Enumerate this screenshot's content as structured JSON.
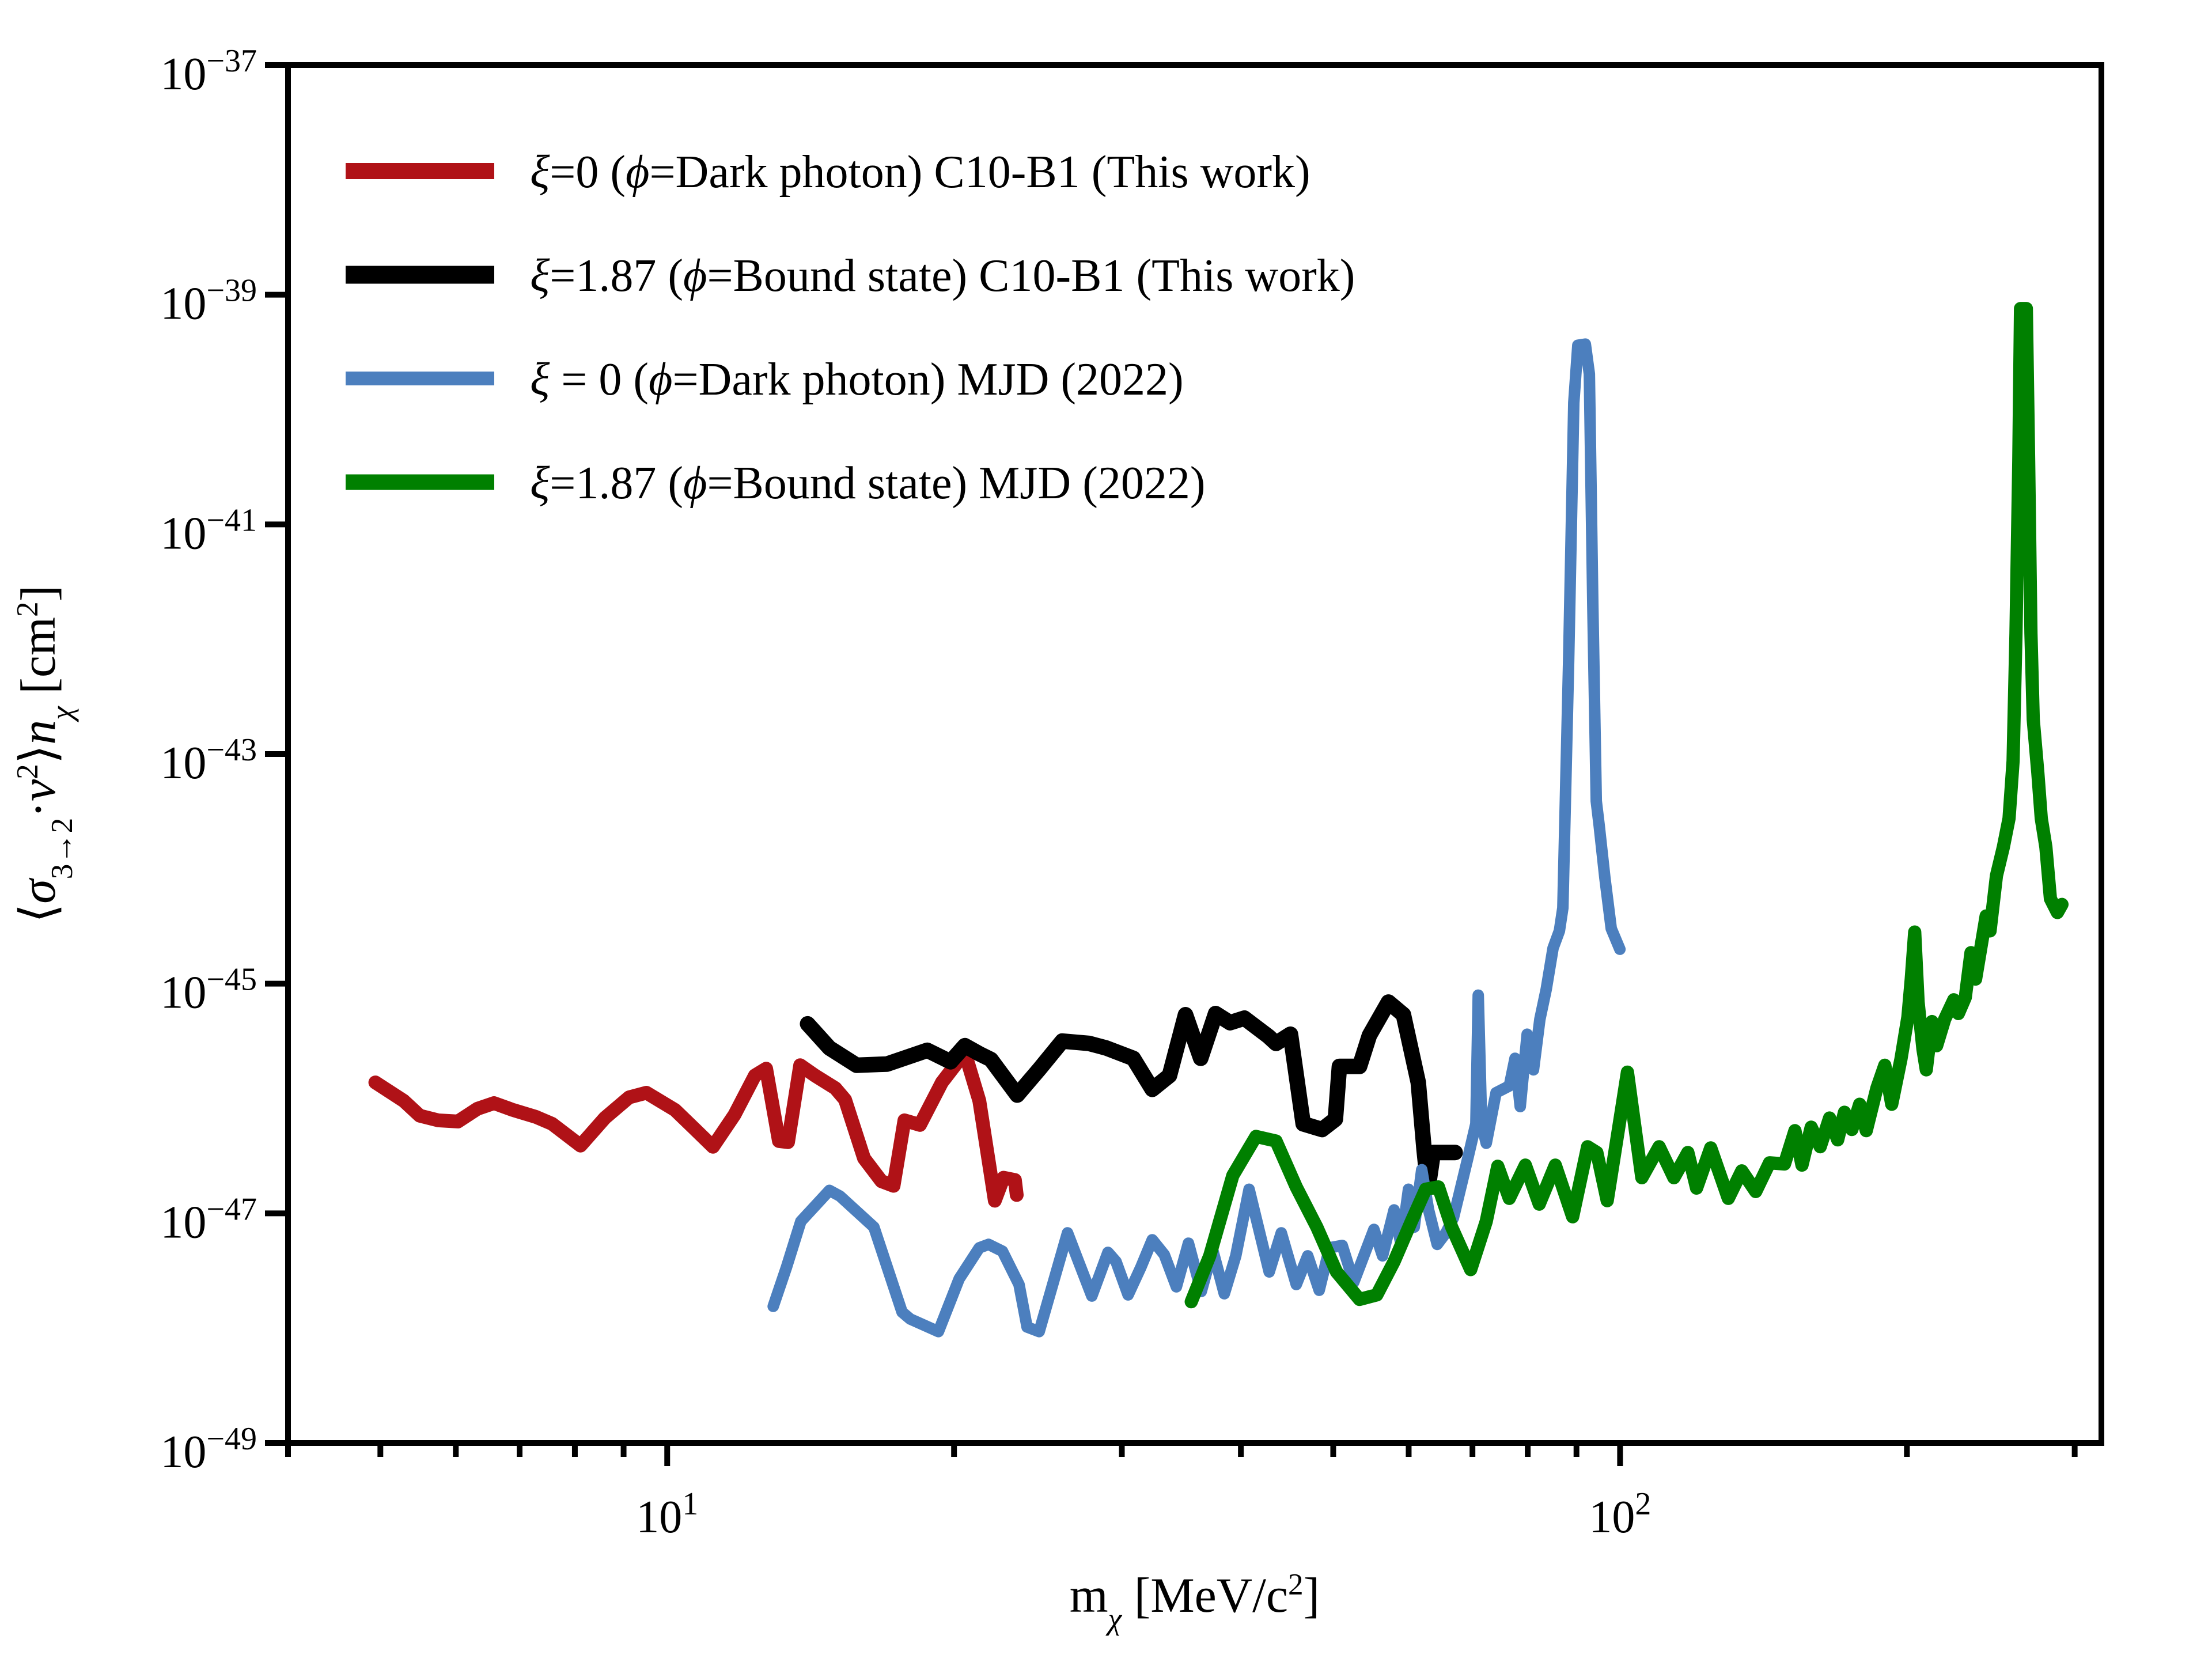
{
  "figure": {
    "background": "#ffffff",
    "frame_color": "#000000"
  },
  "labels": {
    "xlabel_parts": [
      {
        "t": "m",
        "k": "n"
      },
      {
        "t": "χ",
        "k": "isub"
      },
      {
        "t": " [MeV/c",
        "k": "n"
      },
      {
        "t": "2",
        "k": "sup"
      },
      {
        "t": "]",
        "k": "n"
      }
    ],
    "ylabel_parts": [
      {
        "t": "⟨",
        "k": "n"
      },
      {
        "t": "σ",
        "k": "i"
      },
      {
        "t": "3→2",
        "k": "sub"
      },
      {
        "t": "·",
        "k": "n"
      },
      {
        "t": "v",
        "k": "i"
      },
      {
        "t": "2",
        "k": "sup"
      },
      {
        "t": "⟩",
        "k": "n"
      },
      {
        "t": "n",
        "k": "i"
      },
      {
        "t": "χ",
        "k": "isub"
      },
      {
        "t": " [cm",
        "k": "n"
      },
      {
        "t": "2",
        "k": "sup"
      },
      {
        "t": "]",
        "k": "n"
      }
    ]
  },
  "axes": {
    "x_major": [
      {
        "m": 10,
        "base": "10",
        "exp": "1"
      },
      {
        "m": 100,
        "base": "10",
        "exp": "2"
      }
    ],
    "x_minor": [
      4,
      5,
      6,
      7,
      8,
      9,
      20,
      30,
      40,
      50,
      60,
      70,
      80,
      90,
      200,
      300
    ],
    "y_major": [
      {
        "e": -37,
        "base": "10",
        "exp": "−37"
      },
      {
        "e": -39,
        "base": "10",
        "exp": "−39"
      },
      {
        "e": -41,
        "base": "10",
        "exp": "−41"
      },
      {
        "e": -43,
        "base": "10",
        "exp": "−43"
      },
      {
        "e": -45,
        "base": "10",
        "exp": "−45"
      },
      {
        "e": -47,
        "base": "10",
        "exp": "−47"
      },
      {
        "e": -49,
        "base": "10",
        "exp": "−49"
      }
    ]
  },
  "legend": {
    "entries": [
      {
        "id": "xi0-c10b1",
        "color": "#B01217",
        "parts": [
          {
            "t": "ξ",
            "k": "i"
          },
          {
            "t": "=0 (",
            "k": "n"
          },
          {
            "t": "ϕ",
            "k": "i"
          },
          {
            "t": "=Dark photon) C10-B1 (This work)",
            "k": "n"
          }
        ]
      },
      {
        "id": "xi187-c10b1",
        "color": "#000000",
        "parts": [
          {
            "t": "ξ",
            "k": "i"
          },
          {
            "t": "=1.87 (",
            "k": "n"
          },
          {
            "t": "ϕ",
            "k": "i"
          },
          {
            "t": "=Bound state) C10-B1 (This work)",
            "k": "n"
          }
        ]
      },
      {
        "id": "xi0-mjd",
        "color": "#4C7FBE",
        "parts": [
          {
            "t": "ξ",
            "k": "i"
          },
          {
            "t": " = 0 (",
            "k": "n"
          },
          {
            "t": "ϕ",
            "k": "i"
          },
          {
            "t": "=Dark photon) MJD (2022)",
            "k": "n"
          }
        ]
      },
      {
        "id": "xi187-mjd",
        "color": "#008000",
        "parts": [
          {
            "t": "ξ",
            "k": "i"
          },
          {
            "t": "=1.87 (",
            "k": "n"
          },
          {
            "t": "ϕ",
            "k": "i"
          },
          {
            "t": "=Bound state) MJD (2022)",
            "k": "n"
          }
        ]
      }
    ]
  },
  "chart_data": {
    "type": "line",
    "title": "",
    "xlabel": "m_chi [MeV/c^2]",
    "ylabel": "<sigma_{3->2} v^2> n_chi [cm^2]",
    "xscale": "log",
    "yscale": "log",
    "xlim": [
      4,
      320
    ],
    "ylim_log10": [
      -49,
      -37
    ],
    "grid": false,
    "legend_position": "upper left",
    "note": "points are [mass_MeV, log10_cross_section_cm2]",
    "series": [
      {
        "id": "xi0-c10b1",
        "name": "ξ=0 (ϕ=Dark photon) C10-B1 (This work)",
        "color": "#B01217",
        "lw": 24,
        "points": [
          [
            4.94,
            -45.86
          ],
          [
            5.29,
            -46.02
          ],
          [
            5.5,
            -46.15
          ],
          [
            5.75,
            -46.19
          ],
          [
            6.03,
            -46.2
          ],
          [
            6.32,
            -46.09
          ],
          [
            6.58,
            -46.04
          ],
          [
            6.89,
            -46.1
          ],
          [
            7.28,
            -46.16
          ],
          [
            7.57,
            -46.22
          ],
          [
            8.11,
            -46.41
          ],
          [
            8.6,
            -46.17
          ],
          [
            9.12,
            -45.99
          ],
          [
            9.51,
            -45.95
          ],
          [
            10.19,
            -46.1
          ],
          [
            10.67,
            -46.26
          ],
          [
            11.17,
            -46.42
          ],
          [
            11.77,
            -46.14
          ],
          [
            12.36,
            -45.8
          ],
          [
            12.7,
            -45.74
          ],
          [
            13.1,
            -46.37
          ],
          [
            13.39,
            -46.38
          ],
          [
            13.79,
            -45.71
          ],
          [
            14.29,
            -45.8
          ],
          [
            15.01,
            -45.91
          ],
          [
            15.37,
            -46.01
          ],
          [
            16.09,
            -46.52
          ],
          [
            16.78,
            -46.72
          ],
          [
            17.28,
            -46.76
          ],
          [
            17.74,
            -46.19
          ],
          [
            18.42,
            -46.23
          ],
          [
            19.42,
            -45.86
          ],
          [
            20.53,
            -45.6
          ],
          [
            21.26,
            -46.02
          ],
          [
            22.07,
            -46.89
          ],
          [
            22.54,
            -46.69
          ],
          [
            23.17,
            -46.71
          ],
          [
            23.27,
            -46.84
          ]
        ]
      },
      {
        "id": "xi187-c10b1",
        "name": "ξ=1.87 (ϕ=Bound state) C10-B1 (This work)",
        "color": "#000000",
        "lw": 27,
        "points": [
          [
            14.04,
            -45.35
          ],
          [
            14.8,
            -45.56
          ],
          [
            15.8,
            -45.71
          ],
          [
            17.01,
            -45.7
          ],
          [
            18.75,
            -45.58
          ],
          [
            19.83,
            -45.68
          ],
          [
            20.53,
            -45.54
          ],
          [
            21.26,
            -45.61
          ],
          [
            21.86,
            -45.66
          ],
          [
            23.3,
            -45.97
          ],
          [
            24.6,
            -45.74
          ],
          [
            25.98,
            -45.5
          ],
          [
            27.71,
            -45.52
          ],
          [
            28.89,
            -45.56
          ],
          [
            30.84,
            -45.65
          ],
          [
            32.29,
            -45.92
          ],
          [
            33.66,
            -45.8
          ],
          [
            34.99,
            -45.27
          ],
          [
            36.3,
            -45.65
          ],
          [
            37.63,
            -45.26
          ],
          [
            38.97,
            -45.34
          ],
          [
            40.34,
            -45.3
          ],
          [
            42.77,
            -45.46
          ],
          [
            43.55,
            -45.52
          ],
          [
            45.09,
            -45.44
          ],
          [
            46.5,
            -46.22
          ],
          [
            48.67,
            -46.27
          ],
          [
            50.26,
            -46.18
          ],
          [
            50.75,
            -45.72
          ],
          [
            53.29,
            -45.72
          ],
          [
            54.57,
            -45.45
          ],
          [
            57.14,
            -45.16
          ],
          [
            59.24,
            -45.27
          ],
          [
            61.41,
            -45.86
          ],
          [
            62.27,
            -46.44
          ],
          [
            62.88,
            -46.78
          ],
          [
            63.67,
            -46.47
          ],
          [
            67.13,
            -46.47
          ]
        ]
      },
      {
        "id": "xi0-mjd",
        "name": "ξ = 0 (ϕ=Dark photon) MJD (2022)",
        "color": "#4C7FBE",
        "lw": 20,
        "points": [
          [
            12.92,
            -47.81
          ],
          [
            13.34,
            -47.47
          ],
          [
            13.81,
            -47.07
          ],
          [
            14.8,
            -46.8
          ],
          [
            15.18,
            -46.85
          ],
          [
            16.48,
            -47.12
          ],
          [
            17.64,
            -47.86
          ],
          [
            17.99,
            -47.92
          ],
          [
            19.26,
            -48.03
          ],
          [
            20.25,
            -47.57
          ],
          [
            21.26,
            -47.3
          ],
          [
            21.74,
            -47.27
          ],
          [
            22.48,
            -47.33
          ],
          [
            23.4,
            -47.62
          ],
          [
            23.86,
            -47.99
          ],
          [
            24.57,
            -48.03
          ],
          [
            26.31,
            -47.17
          ],
          [
            27.02,
            -47.42
          ],
          [
            27.9,
            -47.72
          ],
          [
            29.01,
            -47.34
          ],
          [
            29.58,
            -47.42
          ],
          [
            30.46,
            -47.71
          ],
          [
            31.41,
            -47.47
          ],
          [
            32.29,
            -47.23
          ],
          [
            33.24,
            -47.36
          ],
          [
            34.23,
            -47.64
          ],
          [
            35.24,
            -47.26
          ],
          [
            36.35,
            -47.68
          ],
          [
            37.37,
            -47.32
          ],
          [
            38.43,
            -47.7
          ],
          [
            39.51,
            -47.37
          ],
          [
            40.8,
            -46.79
          ],
          [
            42.83,
            -47.51
          ],
          [
            44.1,
            -47.17
          ],
          [
            45.73,
            -47.62
          ],
          [
            47.01,
            -47.37
          ],
          [
            48.33,
            -47.67
          ],
          [
            49.56,
            -47.3
          ],
          [
            51.1,
            -47.28
          ],
          [
            52.54,
            -47.6
          ],
          [
            55.17,
            -47.14
          ],
          [
            56.33,
            -47.37
          ],
          [
            57.92,
            -46.97
          ],
          [
            58.9,
            -47.27
          ],
          [
            59.97,
            -46.79
          ],
          [
            60.81,
            -47.12
          ],
          [
            61.92,
            -46.62
          ],
          [
            62.96,
            -46.97
          ],
          [
            64.29,
            -47.27
          ],
          [
            65.65,
            -47.17
          ],
          [
            66.85,
            -47.04
          ],
          [
            69.22,
            -46.52
          ],
          [
            70.58,
            -46.22
          ],
          [
            70.98,
            -45.1
          ],
          [
            71.57,
            -46.22
          ],
          [
            72.37,
            -46.39
          ],
          [
            74.1,
            -45.95
          ],
          [
            76.52,
            -45.89
          ],
          [
            77.59,
            -45.65
          ],
          [
            78.57,
            -46.07
          ],
          [
            79.89,
            -45.44
          ],
          [
            81.12,
            -45.75
          ],
          [
            82.38,
            -45.31
          ],
          [
            83.65,
            -45.05
          ],
          [
            85.05,
            -44.69
          ],
          [
            86.36,
            -44.54
          ],
          [
            87.09,
            -44.34
          ],
          [
            88.31,
            -42.2
          ],
          [
            89.42,
            -39.94
          ],
          [
            90.3,
            -39.44
          ],
          [
            91.95,
            -39.43
          ],
          [
            92.85,
            -39.69
          ],
          [
            93.63,
            -41.7
          ],
          [
            94.41,
            -43.41
          ],
          [
            95.07,
            -43.62
          ],
          [
            96.4,
            -44.08
          ],
          [
            97.89,
            -44.52
          ],
          [
            99.96,
            -44.7
          ]
        ]
      },
      {
        "id": "xi187-mjd",
        "name": "ξ=1.87 (ϕ=Bound state) MJD (2022)",
        "color": "#008000",
        "lw": 23,
        "points": [
          [
            35.48,
            -47.77
          ],
          [
            37.1,
            -47.37
          ],
          [
            39.23,
            -46.67
          ],
          [
            41.48,
            -46.33
          ],
          [
            43.54,
            -46.37
          ],
          [
            45.72,
            -46.77
          ],
          [
            48.06,
            -47.12
          ],
          [
            50.4,
            -47.51
          ],
          [
            53.28,
            -47.75
          ],
          [
            55.55,
            -47.71
          ],
          [
            57.92,
            -47.42
          ],
          [
            60.39,
            -47.07
          ],
          [
            62.52,
            -46.79
          ],
          [
            64.47,
            -46.77
          ],
          [
            66.57,
            -47.12
          ],
          [
            69.7,
            -47.49
          ],
          [
            72.37,
            -47.07
          ],
          [
            74.41,
            -46.59
          ],
          [
            76.51,
            -46.87
          ],
          [
            79.55,
            -46.58
          ],
          [
            82.26,
            -46.92
          ],
          [
            85.52,
            -46.58
          ],
          [
            89.18,
            -47.03
          ],
          [
            92.46,
            -46.42
          ],
          [
            94.54,
            -46.47
          ],
          [
            96.94,
            -46.89
          ],
          [
            101.8,
            -45.77
          ],
          [
            105.4,
            -46.69
          ],
          [
            109.9,
            -46.42
          ],
          [
            113.9,
            -46.69
          ],
          [
            117.8,
            -46.47
          ],
          [
            120.3,
            -46.78
          ],
          [
            124.5,
            -46.43
          ],
          [
            129.9,
            -46.87
          ],
          [
            134.2,
            -46.63
          ],
          [
            138.8,
            -46.81
          ],
          [
            143.5,
            -46.56
          ],
          [
            148.8,
            -46.57
          ],
          [
            152.6,
            -46.28
          ],
          [
            155.2,
            -46.58
          ],
          [
            158.7,
            -46.25
          ],
          [
            162.2,
            -46.42
          ],
          [
            165.9,
            -46.17
          ],
          [
            169.2,
            -46.36
          ],
          [
            172,
            -46.12
          ],
          [
            175.1,
            -46.27
          ],
          [
            178.4,
            -46.05
          ],
          [
            181.3,
            -46.28
          ],
          [
            186,
            -45.91
          ],
          [
            189.6,
            -45.71
          ],
          [
            192.8,
            -46.05
          ],
          [
            197.1,
            -45.66
          ],
          [
            200.5,
            -45.29
          ],
          [
            202.1,
            -44.96
          ],
          [
            203.8,
            -44.55
          ],
          [
            205.5,
            -45.16
          ],
          [
            207.9,
            -45.57
          ],
          [
            209.6,
            -45.75
          ],
          [
            212.5,
            -45.33
          ],
          [
            214.9,
            -45.54
          ],
          [
            219.1,
            -45.31
          ],
          [
            224,
            -45.14
          ],
          [
            226.5,
            -45.26
          ],
          [
            230.3,
            -45.12
          ],
          [
            233.5,
            -44.73
          ],
          [
            236.1,
            -44.96
          ],
          [
            242.2,
            -44.41
          ],
          [
            244.5,
            -44.54
          ],
          [
            248.3,
            -44.06
          ],
          [
            252.5,
            -43.81
          ],
          [
            256,
            -43.56
          ],
          [
            258.5,
            -43.06
          ],
          [
            260.3,
            -41.95
          ],
          [
            262.1,
            -40.45
          ],
          [
            263.2,
            -39.12
          ],
          [
            266.9,
            -39.12
          ],
          [
            268.4,
            -40.45
          ],
          [
            269.9,
            -41.95
          ],
          [
            271.4,
            -42.7
          ],
          [
            274.4,
            -43.16
          ],
          [
            276.7,
            -43.56
          ],
          [
            279.8,
            -43.81
          ],
          [
            282.9,
            -44.26
          ],
          [
            287.7,
            -44.38
          ],
          [
            290.9,
            -44.31
          ]
        ]
      }
    ]
  }
}
